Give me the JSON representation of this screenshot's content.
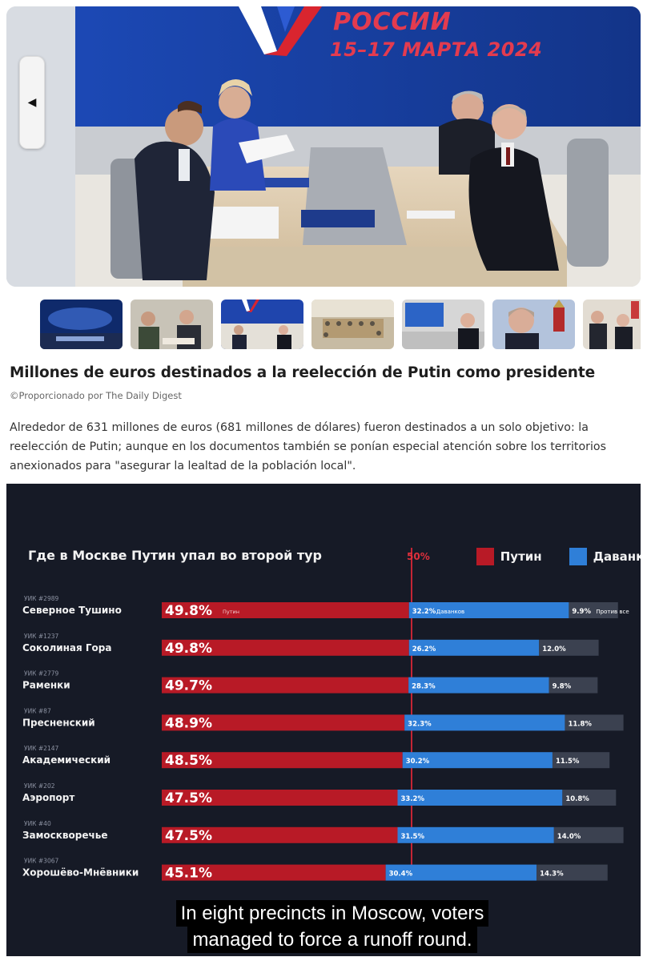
{
  "gallery": {
    "banner_title": "РОССИИ",
    "banner_date": "15–17 МАРТА 2024",
    "prev_icon": "chevron-left-icon",
    "thumbnail_count": 7
  },
  "article": {
    "title": "Millones de euros destinados a la reelección de Putin como presidente",
    "provider": "©Proporcionado por The Daily Digest",
    "body": "Alrededor de 631 millones de euros (681 millones de dólares) fueron destinados a un solo objetivo: la reelección de Putin; aunque en los documentos también se ponían especial atención sobre los territorios anexionados para \"asegurar la lealtad de la población local\"."
  },
  "video": {
    "subtitle_line1": "In eight precincts in Moscow, voters",
    "subtitle_line2": "managed to force a runoff round."
  },
  "chart_data": {
    "type": "bar",
    "stacked": true,
    "orientation": "horizontal",
    "title": "Где в Москве Путин упал во второй тур",
    "marker_label": "50%",
    "legend": [
      "Путин",
      "Даванков"
    ],
    "legend_placement": "top-right",
    "colors": {
      "putin": "#b81a26",
      "davankov": "#2f7fd8",
      "against": "#3b4150",
      "background": "#161a26"
    },
    "categories": [
      {
        "uik": "УИК #2989",
        "name": "Северное Тушино"
      },
      {
        "uik": "УИК #1237",
        "name": "Соколиная Гора"
      },
      {
        "uik": "УИК #2779",
        "name": "Раменки"
      },
      {
        "uik": "УИК #87",
        "name": "Пресненский"
      },
      {
        "uik": "УИК #2147",
        "name": "Академический"
      },
      {
        "uik": "УИК #202",
        "name": "Аэропорт"
      },
      {
        "uik": "УИК #40",
        "name": "Замоскворечье"
      },
      {
        "uik": "УИК #3067",
        "name": "Хорошёво-Мнёвники"
      }
    ],
    "series": [
      {
        "name": "Путин",
        "values": [
          49.8,
          49.8,
          49.7,
          48.9,
          48.5,
          47.5,
          47.5,
          45.1
        ],
        "labels": [
          "49.8%",
          "49.8%",
          "49.7%",
          "48.9%",
          "48.5%",
          "47.5%",
          "47.5%",
          "45.1%"
        ]
      },
      {
        "name": "Даванков",
        "values": [
          32.2,
          26.2,
          28.3,
          32.3,
          30.2,
          33.2,
          31.5,
          30.4
        ],
        "labels": [
          "32.2%",
          "26.2%",
          "28.3%",
          "32.3%",
          "30.2%",
          "33.2%",
          "31.5%",
          "30.4%"
        ]
      },
      {
        "name": "Против всех",
        "values": [
          9.9,
          12.0,
          9.8,
          11.8,
          11.5,
          10.8,
          14.0,
          14.3
        ],
        "labels": [
          "9.9%",
          "12.0%",
          "9.8%",
          "11.8%",
          "11.5%",
          "10.8%",
          "14.0%",
          "14.3%"
        ]
      }
    ],
    "first_row_inline_labels": {
      "putin": "Путин",
      "davankov": "Даванков",
      "against": "Против все"
    },
    "xlim": [
      0,
      100
    ]
  }
}
